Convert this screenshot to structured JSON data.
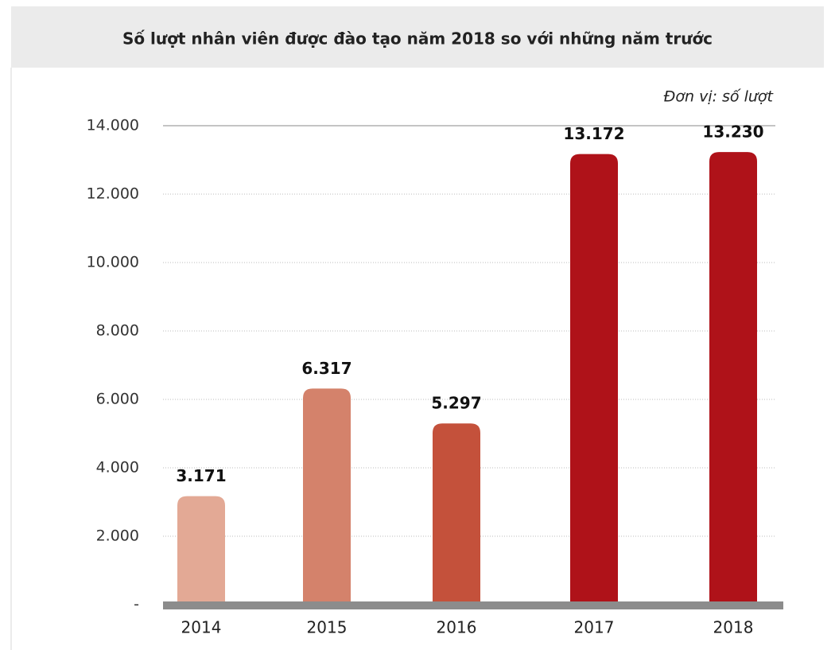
{
  "chart_data": {
    "type": "bar",
    "title": "Số lượt nhân viên được đào tạo năm 2018 so với những năm trước",
    "unit_label": "Đơn vị: số lượt",
    "categories": [
      "2014",
      "2015",
      "2016",
      "2017",
      "2018"
    ],
    "values": [
      3171,
      6317,
      5297,
      13172,
      13230
    ],
    "value_labels": [
      "3.171",
      "6.317",
      "5.297",
      "13.172",
      "13.230"
    ],
    "colors": [
      "#e3a995",
      "#d4826b",
      "#c4513b",
      "#af1219",
      "#af1219"
    ],
    "ylim": [
      0,
      14000
    ],
    "yticks": [
      {
        "value": 0,
        "label": "-"
      },
      {
        "value": 2000,
        "label": "2.000"
      },
      {
        "value": 4000,
        "label": "4.000"
      },
      {
        "value": 6000,
        "label": "6.000"
      },
      {
        "value": 8000,
        "label": "8.000"
      },
      {
        "value": 10000,
        "label": "10.000"
      },
      {
        "value": 12000,
        "label": "12.000"
      },
      {
        "value": 14000,
        "label": "14.000"
      }
    ],
    "grid": true
  }
}
